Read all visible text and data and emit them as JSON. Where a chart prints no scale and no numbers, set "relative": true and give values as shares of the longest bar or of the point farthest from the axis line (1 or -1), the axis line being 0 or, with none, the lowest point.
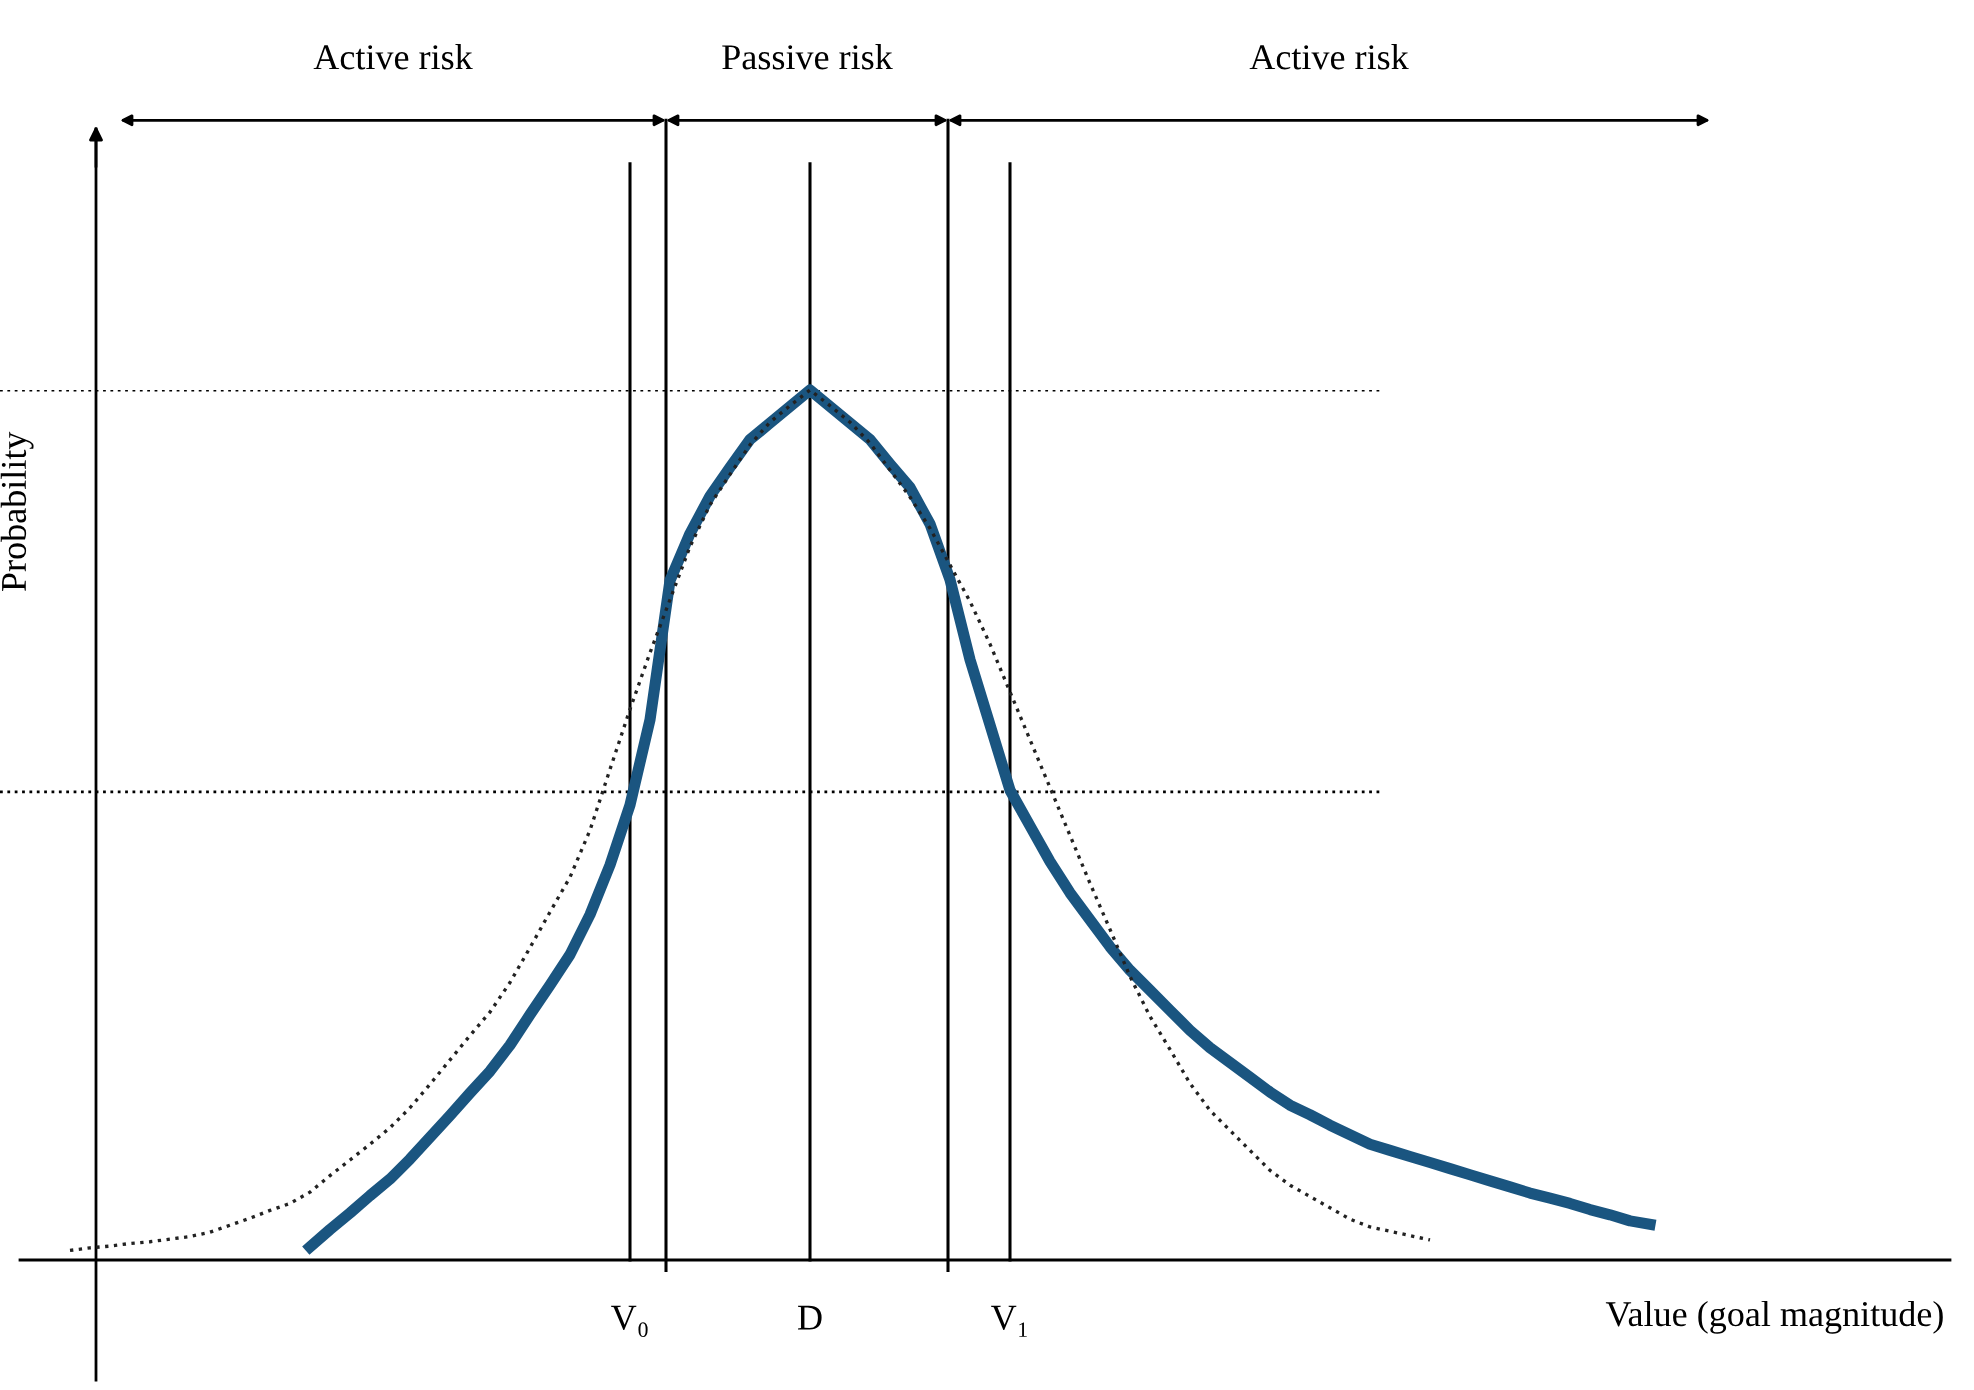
{
  "chart_data": {
    "type": "line",
    "relative": true,
    "xlabel": "Value (goal magnitude)",
    "ylabel": "Probability",
    "categories": [
      null,
      null,
      null,
      null,
      null,
      null,
      null,
      null,
      null,
      null,
      null,
      null,
      null,
      null,
      null,
      null,
      null,
      null,
      null,
      null,
      null,
      null,
      null,
      null,
      null,
      null,
      null,
      null,
      "V₀",
      null,
      null,
      null,
      null,
      null,
      null,
      null,
      null,
      "D",
      null,
      null,
      null,
      null,
      null,
      null,
      null,
      null,
      null,
      "V₁",
      null,
      null,
      null,
      null,
      null,
      null,
      null,
      null,
      null,
      null,
      null,
      null,
      null,
      null,
      null,
      null,
      null,
      null,
      null,
      null,
      null,
      null,
      null,
      null,
      null,
      null,
      null,
      null,
      null,
      null,
      null,
      null
    ],
    "series": [
      {
        "color": "#1a5580",
        "line_style": "solid",
        "values": [
          null,
          null,
          null,
          null,
          null,
          null,
          null,
          null,
          null,
          null,
          null,
          null,
          0.015,
          0.035,
          0.054,
          0.074,
          0.093,
          0.116,
          0.141,
          0.166,
          0.192,
          0.217,
          0.247,
          0.282,
          0.316,
          0.351,
          0.397,
          0.454,
          0.523,
          0.621,
          0.781,
          0.835,
          0.878,
          0.911,
          0.943,
          0.962,
          0.981,
          1,
          0.981,
          0.962,
          0.943,
          0.915,
          0.888,
          0.846,
          0.782,
          0.69,
          0.615,
          0.54,
          0.499,
          0.458,
          0.422,
          0.391,
          0.36,
          0.333,
          0.31,
          0.287,
          0.264,
          0.244,
          0.227,
          0.21,
          0.193,
          0.178,
          0.167,
          0.155,
          0.144,
          0.133,
          0.126,
          0.119,
          0.112,
          0.105,
          0.098,
          0.091,
          0.084,
          0.077,
          0.071,
          0.065,
          0.058,
          0.052,
          0.045,
          0.041
        ]
      },
      {
        "color": "#222222",
        "line_style": "dotted",
        "values": [
          0.011,
          0.014,
          0.016,
          0.019,
          0.021,
          0.024,
          0.027,
          0.032,
          0.04,
          0.048,
          0.057,
          0.065,
          0.078,
          0.097,
          0.115,
          0.133,
          0.152,
          0.175,
          0.202,
          0.23,
          0.258,
          0.285,
          0.319,
          0.359,
          0.4,
          0.44,
          0.494,
          0.564,
          0.633,
          0.698,
          0.759,
          0.82,
          0.868,
          0.903,
          0.937,
          0.963,
          0.982,
          1,
          0.982,
          0.963,
          0.939,
          0.908,
          0.877,
          0.841,
          0.799,
          0.757,
          0.708,
          0.653,
          0.598,
          0.543,
          0.488,
          0.433,
          0.38,
          0.326,
          0.28,
          0.242,
          0.203,
          0.172,
          0.149,
          0.126,
          0.103,
          0.086,
          0.073,
          0.06,
          0.047,
          0.038,
          0.033,
          0.028,
          0.023,
          null,
          null,
          null,
          null,
          null,
          null,
          null,
          null,
          null,
          null,
          null
        ]
      }
    ],
    "grid": "x",
    "ref_lines": [
      {
        "axis": "y",
        "value": 1,
        "color": "#000000",
        "line_style": "dotted"
      },
      {
        "axis": "y",
        "value": 0.538,
        "color": "#000000",
        "line_style": "dotted"
      }
    ],
    "annotations": [
      "Active risk",
      "Passive risk",
      "Active risk"
    ],
    "marker": "none"
  }
}
